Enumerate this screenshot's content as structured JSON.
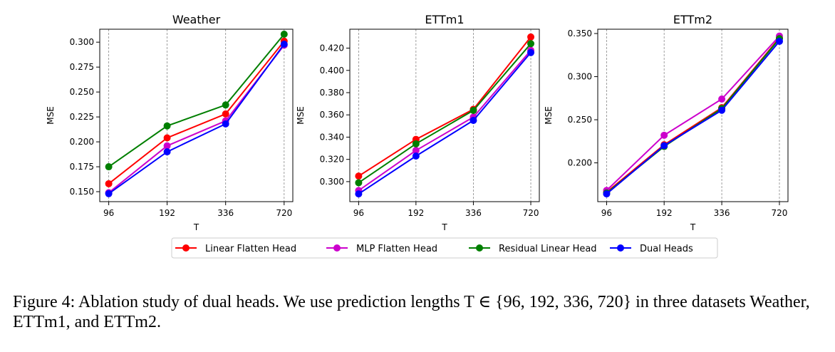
{
  "chart_data": [
    {
      "type": "line",
      "title": "Weather",
      "xlabel": "T",
      "ylabel": "MSE",
      "categories": [
        "96",
        "192",
        "336",
        "720"
      ],
      "yticks": [
        "0.150",
        "0.175",
        "0.200",
        "0.225",
        "0.250",
        "0.275",
        "0.300"
      ],
      "ylim": [
        0.14,
        0.313
      ],
      "grid": "vertical",
      "series": [
        {
          "name": "Linear Flatten Head",
          "color": "#ff0000",
          "values": [
            0.158,
            0.204,
            0.228,
            0.301
          ]
        },
        {
          "name": "MLP Flatten Head",
          "color": "#cc00cc",
          "values": [
            0.149,
            0.196,
            0.221,
            0.297
          ]
        },
        {
          "name": "Residual Linear Head",
          "color": "#007f00",
          "values": [
            0.175,
            0.216,
            0.237,
            0.308
          ]
        },
        {
          "name": "Dual Heads",
          "color": "#0000ff",
          "values": [
            0.148,
            0.19,
            0.218,
            0.298
          ]
        }
      ]
    },
    {
      "type": "line",
      "title": "ETTm1",
      "xlabel": "T",
      "ylabel": "MSE",
      "categories": [
        "96",
        "192",
        "336",
        "720"
      ],
      "yticks": [
        "0.300",
        "0.320",
        "0.340",
        "0.360",
        "0.380",
        "0.400",
        "0.420"
      ],
      "ylim": [
        0.282,
        0.437
      ],
      "grid": "vertical",
      "series": [
        {
          "name": "Linear Flatten Head",
          "color": "#ff0000",
          "values": [
            0.305,
            0.338,
            0.365,
            0.43
          ]
        },
        {
          "name": "MLP Flatten Head",
          "color": "#cc00cc",
          "values": [
            0.292,
            0.328,
            0.358,
            0.418
          ]
        },
        {
          "name": "Residual Linear Head",
          "color": "#007f00",
          "values": [
            0.299,
            0.334,
            0.364,
            0.424
          ]
        },
        {
          "name": "Dual Heads",
          "color": "#0000ff",
          "values": [
            0.289,
            0.323,
            0.355,
            0.416
          ]
        }
      ]
    },
    {
      "type": "line",
      "title": "ETTm2",
      "xlabel": "T",
      "ylabel": "MSE",
      "categories": [
        "96",
        "192",
        "336",
        "720"
      ],
      "yticks": [
        "0.200",
        "0.250",
        "0.300",
        "0.350"
      ],
      "ylim": [
        0.155,
        0.355
      ],
      "grid": "vertical",
      "series": [
        {
          "name": "Linear Flatten Head",
          "color": "#ff0000",
          "values": [
            0.166,
            0.221,
            0.264,
            0.345
          ]
        },
        {
          "name": "MLP Flatten Head",
          "color": "#cc00cc",
          "values": [
            0.168,
            0.232,
            0.274,
            0.347
          ]
        },
        {
          "name": "Residual Linear Head",
          "color": "#007f00",
          "values": [
            0.165,
            0.219,
            0.263,
            0.344
          ]
        },
        {
          "name": "Dual Heads",
          "color": "#0000ff",
          "values": [
            0.164,
            0.22,
            0.261,
            0.341
          ]
        }
      ]
    }
  ],
  "legend": {
    "placement": "bottom-center",
    "entries": [
      "Linear Flatten Head",
      "MLP Flatten Head",
      "Residual Linear Head",
      "Dual Heads"
    ]
  },
  "caption": {
    "text": "Figure 4: Ablation study of dual heads. We use prediction lengths T ∈ {96, 192, 336, 720} in three datasets Weather, ETTm1, and ETTm2."
  }
}
